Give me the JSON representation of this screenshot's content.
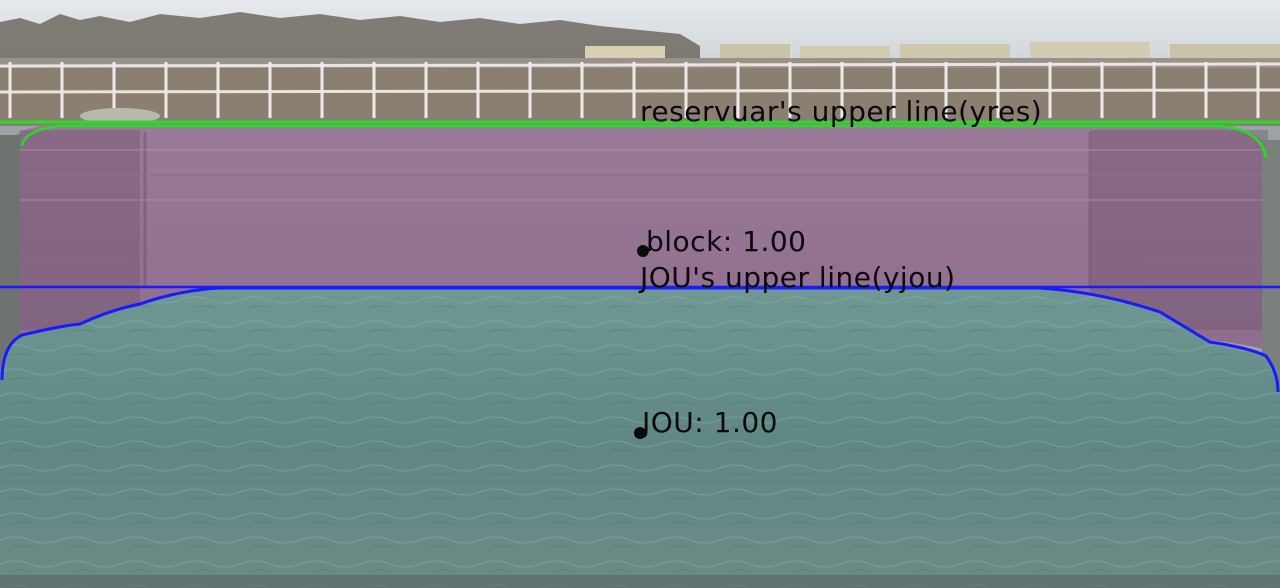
{
  "overlay": {
    "reservoir_line_label": "reservuar's upper line(yres)",
    "jou_line_label": "JOU's upper line(yjou)",
    "block_label": "block: 1.00",
    "jou_label": "JOU: 1.00"
  },
  "colors": {
    "reservoir_line": "#22e01e",
    "jou_line": "#1a1aff",
    "block_tint": "#b07ab8",
    "water": "#5e8a86",
    "sky": "#d7dde3",
    "text": "#0a0a0a"
  }
}
